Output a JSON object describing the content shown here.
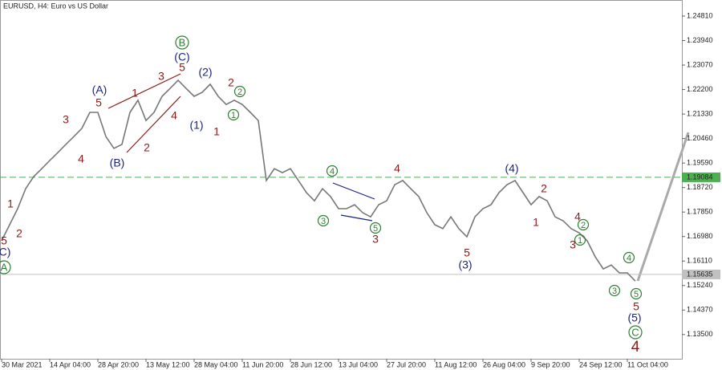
{
  "chart_data": {
    "type": "line",
    "title": "EURUSD, H4:  Euro vs US Dollar",
    "series": [
      {
        "name": "EURUSD",
        "color": "#777777",
        "values": [
          1.1683,
          1.174,
          1.1797,
          1.1868,
          1.1911,
          1.1939,
          1.1968,
          1.1996,
          1.2025,
          1.2053,
          1.2082,
          1.2139,
          1.2139,
          1.2053,
          1.2011,
          1.2025,
          1.2139,
          1.2182,
          1.211,
          1.2139,
          1.2196,
          1.2224,
          1.2253,
          1.2224,
          1.2196,
          1.221,
          1.2239,
          1.2196,
          1.2167,
          1.2182,
          1.2167,
          1.2139,
          1.211,
          1.1897,
          1.1939,
          1.1925,
          1.1939,
          1.1897,
          1.1854,
          1.1825,
          1.1868,
          1.184,
          1.1797,
          1.1797,
          1.1811,
          1.1783,
          1.1768,
          1.1811,
          1.1825,
          1.1882,
          1.1897,
          1.1868,
          1.184,
          1.1783,
          1.174,
          1.1726,
          1.1768,
          1.1726,
          1.1697,
          1.1768,
          1.1797,
          1.1811,
          1.1854,
          1.1882,
          1.1897,
          1.1854,
          1.1811,
          1.184,
          1.1825,
          1.1768,
          1.1754,
          1.1726,
          1.1711,
          1.1683,
          1.1626,
          1.1583,
          1.1597,
          1.1569,
          1.1569,
          1.154
        ]
      }
    ],
    "xlim": [
      -0.2,
      84.8
    ],
    "xticks": [
      {
        "value": 0,
        "label": "30 Mar 2021"
      },
      {
        "value": 6,
        "label": "14 Apr 04:00"
      },
      {
        "value": 12,
        "label": "28 Apr 20:00"
      },
      {
        "value": 18,
        "label": "13 May 12:00"
      },
      {
        "value": 24,
        "label": "28 May 04:00"
      },
      {
        "value": 30,
        "label": "11 Jun 20:00"
      },
      {
        "value": 36,
        "label": "28 Jun 12:00"
      },
      {
        "value": 42,
        "label": "13 Jul 04:00"
      },
      {
        "value": 48,
        "label": "27 Jul 20:00"
      },
      {
        "value": 54,
        "label": "11 Aug 12:00"
      },
      {
        "value": 60,
        "label": "26 Aug 04:00"
      },
      {
        "value": 66,
        "label": "9 Sep 20:00"
      },
      {
        "value": 72,
        "label": "24 Sep 12:00"
      },
      {
        "value": 78,
        "label": "11 Oct 04:00"
      }
    ],
    "ylim": [
      1.1264,
      1.2538
    ],
    "yticks": [
      {
        "value": 1.2481,
        "label": "1.24810"
      },
      {
        "value": 1.2394,
        "label": "1.23940"
      },
      {
        "value": 1.2307,
        "label": "1.23070"
      },
      {
        "value": 1.222,
        "label": "1.22200"
      },
      {
        "value": 1.2133,
        "label": "1.21330"
      },
      {
        "value": 1.2046,
        "label": "1.20460"
      },
      {
        "value": 1.1959,
        "label": "1.19590"
      },
      {
        "value": 1.1872,
        "label": "1.18720"
      },
      {
        "value": 1.1785,
        "label": "1.17850"
      },
      {
        "value": 1.1698,
        "label": "1.16980"
      },
      {
        "value": 1.1611,
        "label": "1.16110"
      },
      {
        "value": 1.1524,
        "label": "1.15240"
      },
      {
        "value": 1.1437,
        "label": "1.14370"
      },
      {
        "value": 1.135,
        "label": "1.13500"
      }
    ],
    "levels": [
      {
        "value": 1.19084,
        "label": "1.19084",
        "color": "#4caf50",
        "dashed": true
      },
      {
        "value": 1.15635,
        "label": "1.15635",
        "color": "#c0c0c0",
        "dashed": false
      }
    ],
    "annotations": [
      {
        "text": "A",
        "color": "#2e7d32",
        "circled": true
      },
      {
        "text": "B",
        "color": "#2e7d32",
        "circled": true
      },
      {
        "text": "1",
        "color": "#2e7d32",
        "circled": true
      },
      {
        "text": "2",
        "color": "#2e7d32",
        "circled": true
      },
      {
        "text": "4",
        "color": "#2e7d32",
        "circled": true
      },
      {
        "text": "3",
        "color": "#2e7d32",
        "circled": true
      },
      {
        "text": "5",
        "color": "#2e7d32",
        "circled": true
      },
      {
        "text": "1",
        "color": "#2e7d32",
        "circled": true
      },
      {
        "text": "2",
        "color": "#2e7d32",
        "circled": true
      },
      {
        "text": "4",
        "color": "#2e7d32",
        "circled": true
      },
      {
        "text": "3",
        "color": "#2e7d32",
        "circled": true
      },
      {
        "text": "5",
        "color": "#2e7d32",
        "circled": true
      },
      {
        "text": "C",
        "color": "#2e7d32",
        "circled": true
      },
      {
        "text": "5",
        "color": "#8b1a1a"
      },
      {
        "text": "2",
        "color": "#8b1a1a"
      },
      {
        "text": "1",
        "color": "#8b1a1a"
      },
      {
        "text": "4",
        "color": "#8b1a1a"
      },
      {
        "text": "3",
        "color": "#8b1a1a"
      },
      {
        "text": "5",
        "color": "#8b1a1a"
      },
      {
        "text": "1",
        "color": "#8b1a1a"
      },
      {
        "text": "3",
        "color": "#8b1a1a"
      },
      {
        "text": "5",
        "color": "#8b1a1a"
      },
      {
        "text": "4",
        "color": "#8b1a1a"
      },
      {
        "text": "2",
        "color": "#8b1a1a"
      },
      {
        "text": "2",
        "color": "#8b1a1a"
      },
      {
        "text": "1",
        "color": "#8b1a1a"
      },
      {
        "text": "4",
        "color": "#8b1a1a"
      },
      {
        "text": "3",
        "color": "#8b1a1a"
      },
      {
        "text": "5",
        "color": "#8b1a1a"
      },
      {
        "text": "2",
        "color": "#8b1a1a"
      },
      {
        "text": "1",
        "color": "#8b1a1a"
      },
      {
        "text": "4",
        "color": "#8b1a1a"
      },
      {
        "text": "3",
        "color": "#8b1a1a"
      },
      {
        "text": "5",
        "color": "#8b1a1a"
      },
      {
        "text": "4",
        "color": "#8b1a1a"
      },
      {
        "text": "C)",
        "color": "#1a237e"
      },
      {
        "text": "(A)",
        "color": "#1a237e"
      },
      {
        "text": "(B)",
        "color": "#1a237e"
      },
      {
        "text": "(C)",
        "color": "#1a237e"
      },
      {
        "text": "(2)",
        "color": "#1a237e"
      },
      {
        "text": "(1)",
        "color": "#1a237e"
      },
      {
        "text": "(4)",
        "color": "#1a237e"
      },
      {
        "text": "(3)",
        "color": "#1a237e"
      },
      {
        "text": "(5)",
        "color": "#1a237e"
      }
    ]
  }
}
